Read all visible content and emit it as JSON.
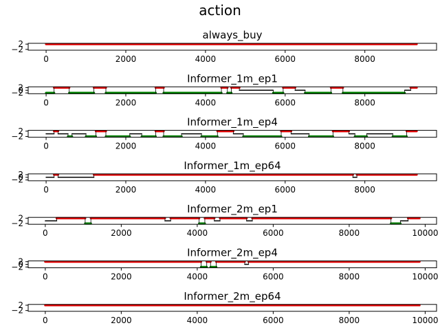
{
  "figure": {
    "title": "action"
  },
  "colors": {
    "buy": "#e00000",
    "hold": "#000000",
    "sell": "#008000"
  },
  "chart_data": [
    {
      "type": "scatter",
      "title": "always_buy",
      "xlim": [
        -450,
        9800
      ],
      "ylim": [
        -2.6,
        2.6
      ],
      "xticks": [
        0,
        2000,
        4000,
        6000,
        8000
      ],
      "yticks": [
        -2,
        2
      ],
      "segments": [
        [
          0,
          9300,
          2
        ]
      ]
    },
    {
      "type": "scatter",
      "title": "Informer_1m_ep1",
      "xlim": [
        -450,
        9800
      ],
      "ylim": [
        -2.6,
        2.6
      ],
      "xticks": [
        0,
        2000,
        4000,
        6000,
        8000
      ],
      "yticks": [
        -2,
        0,
        2
      ],
      "segments": [
        [
          0,
          200,
          -2
        ],
        [
          200,
          580,
          2
        ],
        [
          580,
          1200,
          -2
        ],
        [
          1200,
          1500,
          2
        ],
        [
          1500,
          2750,
          -2
        ],
        [
          2750,
          2950,
          2
        ],
        [
          2950,
          4400,
          -2
        ],
        [
          4400,
          4550,
          2
        ],
        [
          4550,
          4650,
          -2
        ],
        [
          4650,
          4850,
          2
        ],
        [
          4850,
          5700,
          0
        ],
        [
          5700,
          5950,
          -2
        ],
        [
          5950,
          6250,
          2
        ],
        [
          6250,
          6500,
          0
        ],
        [
          6500,
          7150,
          -2
        ],
        [
          7150,
          7450,
          2
        ],
        [
          7450,
          9000,
          -2
        ],
        [
          9000,
          9150,
          0
        ],
        [
          9150,
          9300,
          2
        ]
      ]
    },
    {
      "type": "scatter",
      "title": "Informer_1m_ep4",
      "xlim": [
        -450,
        9800
      ],
      "ylim": [
        -2.6,
        2.6
      ],
      "xticks": [
        0,
        2000,
        4000,
        6000,
        8000
      ],
      "yticks": [
        -2,
        2
      ],
      "segments": [
        [
          0,
          200,
          0
        ],
        [
          200,
          300,
          2
        ],
        [
          300,
          550,
          0
        ],
        [
          550,
          650,
          -2
        ],
        [
          650,
          1000,
          0
        ],
        [
          1000,
          1250,
          -2
        ],
        [
          1250,
          1500,
          2
        ],
        [
          1500,
          2100,
          -2
        ],
        [
          2100,
          2400,
          0
        ],
        [
          2400,
          2750,
          -2
        ],
        [
          2750,
          2950,
          2
        ],
        [
          2950,
          3400,
          -2
        ],
        [
          3400,
          3900,
          0
        ],
        [
          3900,
          4300,
          -2
        ],
        [
          4300,
          4700,
          2
        ],
        [
          4700,
          4950,
          0
        ],
        [
          4950,
          5900,
          -2
        ],
        [
          5900,
          6150,
          2
        ],
        [
          6150,
          6600,
          0
        ],
        [
          6600,
          7200,
          -2
        ],
        [
          7200,
          7600,
          2
        ],
        [
          7600,
          7750,
          0
        ],
        [
          7750,
          8050,
          -2
        ],
        [
          8050,
          8700,
          0
        ],
        [
          8700,
          9050,
          -2
        ],
        [
          9050,
          9300,
          2
        ]
      ]
    },
    {
      "type": "scatter",
      "title": "Informer_1m_ep64",
      "xlim": [
        -450,
        9800
      ],
      "ylim": [
        -2.6,
        2.6
      ],
      "xticks": [
        0,
        2000,
        4000,
        6000,
        8000
      ],
      "yticks": [
        -2,
        0,
        2
      ],
      "segments": [
        [
          0,
          200,
          0
        ],
        [
          200,
          300,
          2
        ],
        [
          300,
          1200,
          0
        ],
        [
          1200,
          7700,
          2
        ],
        [
          7700,
          7800,
          0
        ],
        [
          7800,
          9300,
          2
        ]
      ]
    },
    {
      "type": "scatter",
      "title": "Informer_2m_ep1",
      "xlim": [
        -450,
        10300
      ],
      "ylim": [
        -2.6,
        2.6
      ],
      "xticks": [
        0,
        2000,
        4000,
        6000,
        8000,
        10000
      ],
      "yticks": [
        -2,
        2
      ],
      "segments": [
        [
          0,
          300,
          0
        ],
        [
          300,
          1050,
          2
        ],
        [
          1050,
          1200,
          -2
        ],
        [
          1200,
          3150,
          2
        ],
        [
          3150,
          3300,
          0
        ],
        [
          3300,
          4050,
          2
        ],
        [
          4050,
          4200,
          -2
        ],
        [
          4200,
          4450,
          2
        ],
        [
          4450,
          4600,
          0
        ],
        [
          4600,
          5300,
          2
        ],
        [
          5300,
          5450,
          0
        ],
        [
          5450,
          9100,
          2
        ],
        [
          9100,
          9350,
          -2
        ],
        [
          9350,
          9550,
          0
        ],
        [
          9550,
          9850,
          2
        ]
      ]
    },
    {
      "type": "scatter",
      "title": "Informer_2m_ep4",
      "xlim": [
        -450,
        10300
      ],
      "ylim": [
        -2.6,
        2.6
      ],
      "xticks": [
        0,
        2000,
        4000,
        6000,
        8000,
        10000
      ],
      "yticks": [
        -2,
        0,
        2
      ],
      "segments": [
        [
          0,
          4100,
          2
        ],
        [
          4100,
          4250,
          -2
        ],
        [
          4250,
          4350,
          2
        ],
        [
          4350,
          4500,
          -2
        ],
        [
          4500,
          5250,
          2
        ],
        [
          5250,
          5350,
          0
        ],
        [
          5350,
          9850,
          2
        ]
      ]
    },
    {
      "type": "scatter",
      "title": "Informer_2m_ep64",
      "xlim": [
        -450,
        10300
      ],
      "ylim": [
        -2.6,
        2.6
      ],
      "xticks": [
        0,
        2000,
        4000,
        6000,
        8000,
        10000
      ],
      "yticks": [
        -2,
        2
      ],
      "segments": [
        [
          0,
          9850,
          2
        ]
      ]
    }
  ]
}
